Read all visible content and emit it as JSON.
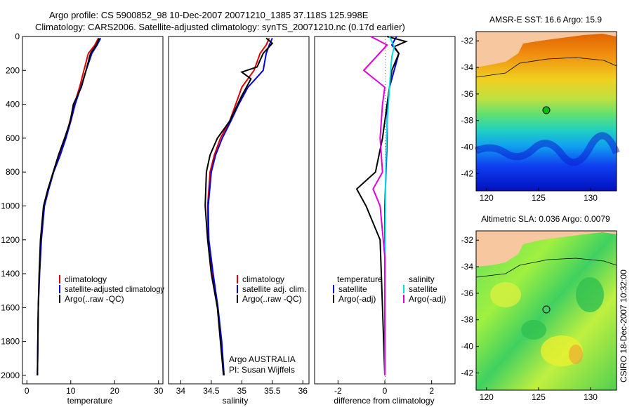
{
  "header": {
    "line1": "Argo profile: CS 5900852_98 10-Dec-2007 20071210_1385 37.118S 125.998E",
    "line2": "Climatology: CARS2006. Satellite-adjusted climatology: synTS_20071210.nc (0.17d earlier)"
  },
  "side_label": "CSIRO 18-Dec-2007 10:32:00",
  "chart_data": [
    {
      "id": "temperature",
      "type": "line",
      "xlabel": "temperature",
      "xlim": [
        -1,
        31
      ],
      "ylim": [
        0,
        2050
      ],
      "xticks": [
        "0",
        "10",
        "20",
        "30"
      ],
      "yticks": [
        "0",
        "200",
        "400",
        "600",
        "800",
        "1000",
        "1200",
        "1400",
        "1600",
        "1800",
        "2000"
      ],
      "legend": [
        "climatology",
        "satellite-adjusted climatology",
        "Argo(..raw -QC)"
      ],
      "series": [
        {
          "name": "climatology",
          "color": "#e00000",
          "x": [
            16.3,
            15.5,
            14.0,
            13.0,
            12.0,
            10.8,
            9.8,
            8.8,
            7.5,
            6.0,
            4.9,
            3.9,
            3.2,
            2.8,
            2.6,
            2.5,
            2.4
          ],
          "y": [
            10,
            50,
            100,
            200,
            300,
            400,
            500,
            600,
            700,
            800,
            900,
            1000,
            1200,
            1400,
            1600,
            1800,
            2000
          ]
        },
        {
          "name": "satellite-adjusted climatology",
          "color": "#0000e0",
          "x": [
            16.8,
            16.0,
            14.8,
            13.5,
            12.3,
            11.0,
            10.0,
            8.9,
            7.6,
            6.1,
            5.0,
            4.0,
            3.3,
            2.9,
            2.6,
            2.5,
            2.4
          ],
          "y": [
            10,
            50,
            100,
            200,
            300,
            400,
            500,
            600,
            700,
            800,
            900,
            1000,
            1200,
            1400,
            1600,
            1800,
            2000
          ]
        },
        {
          "name": "Argo(..raw -QC)",
          "color": "#000000",
          "x": [
            16.5,
            15.8,
            14.5,
            13.5,
            12.4,
            10.6,
            9.9,
            8.6,
            7.2,
            6.0,
            4.8,
            3.8,
            3.1,
            2.8,
            2.6,
            2.5,
            2.4
          ],
          "y": [
            10,
            50,
            100,
            200,
            300,
            400,
            500,
            600,
            700,
            800,
            900,
            1000,
            1200,
            1400,
            1600,
            1800,
            2000
          ]
        }
      ]
    },
    {
      "id": "salinity",
      "type": "line",
      "xlabel": "salinity",
      "xlim": [
        33.8,
        36.1
      ],
      "ylim": [
        0,
        2050
      ],
      "xticks": [
        "34",
        "34.5",
        "35",
        "35.5",
        "36"
      ],
      "legend": [
        "climatology",
        "satellite adj. clim.",
        "Argo(..raw -QC)"
      ],
      "annotation": [
        "Argo AUSTRALIA",
        "PI: Susan Wijffels"
      ],
      "series": [
        {
          "name": "climatology",
          "color": "#e00000",
          "x": [
            35.45,
            35.4,
            35.3,
            35.2,
            35.0,
            34.9,
            34.8,
            34.65,
            34.55,
            34.48,
            34.44,
            34.45,
            34.52,
            34.6,
            34.66,
            34.7
          ],
          "y": [
            10,
            50,
            100,
            200,
            300,
            400,
            500,
            600,
            700,
            800,
            1000,
            1200,
            1400,
            1600,
            1800,
            2000
          ]
        },
        {
          "name": "satellite adj. clim.",
          "color": "#0000e0",
          "x": [
            35.5,
            35.45,
            35.4,
            35.35,
            35.1,
            34.95,
            34.82,
            34.68,
            34.57,
            34.5,
            34.45,
            34.46,
            34.53,
            34.61,
            34.67,
            34.71
          ],
          "y": [
            10,
            50,
            100,
            200,
            300,
            400,
            500,
            600,
            700,
            800,
            1000,
            1200,
            1400,
            1600,
            1800,
            2000
          ]
        },
        {
          "name": "Argo(..raw -QC)",
          "color": "#000000",
          "x": [
            35.4,
            35.5,
            35.35,
            35.25,
            35.0,
            35.15,
            35.0,
            34.8,
            34.6,
            34.48,
            34.42,
            34.4,
            34.44,
            34.5,
            34.6,
            34.65,
            34.7
          ],
          "y": [
            10,
            40,
            100,
            180,
            210,
            250,
            350,
            500,
            600,
            700,
            800,
            1000,
            1200,
            1400,
            1600,
            1800,
            2000
          ]
        }
      ]
    },
    {
      "id": "difference",
      "type": "line",
      "xlabel": "difference from climatology",
      "xlim": [
        -3,
        3
      ],
      "ylim": [
        0,
        2050
      ],
      "xticks": [
        "-2",
        "0",
        "2"
      ],
      "legend": [
        "temperature",
        "satellite",
        "Argo(-adj)",
        "salinity",
        "satellite",
        "Argo(-adj)"
      ],
      "series": [
        {
          "name": "temperature satellite",
          "color": "#0000e0",
          "x": [
            0.5,
            0.3,
            0.6,
            0.5,
            0.4,
            0.2,
            0.1,
            0.1,
            0.05,
            0.0,
            0.0,
            0.0,
            0.0
          ],
          "y": [
            0,
            50,
            100,
            150,
            200,
            300,
            400,
            600,
            800,
            1000,
            1400,
            1800,
            2000
          ]
        },
        {
          "name": "temperature Argo(-adj)",
          "color": "#000000",
          "x": [
            0.1,
            0.9,
            0.4,
            0.6,
            0.3,
            0.1,
            -0.1,
            -0.4,
            -1.2,
            -0.8,
            -0.2,
            -0.1,
            0.0
          ],
          "y": [
            0,
            30,
            60,
            100,
            200,
            400,
            600,
            800,
            900,
            1000,
            1200,
            1600,
            2000
          ]
        },
        {
          "name": "salinity satellite",
          "color": "#00e0e0",
          "x": [
            0.2,
            0.4,
            0.3,
            0.25,
            0.2,
            0.1,
            0.05,
            0.02,
            0.0,
            0.0
          ],
          "y": [
            0,
            60,
            120,
            200,
            300,
            500,
            700,
            1000,
            1500,
            2000
          ]
        },
        {
          "name": "salinity Argo(-adj)",
          "color": "#e000e0",
          "x": [
            -0.6,
            0.1,
            -0.9,
            0.0,
            -0.1,
            -0.2,
            -0.1,
            -0.5,
            -0.2,
            0.0,
            0.0
          ],
          "y": [
            0,
            50,
            200,
            300,
            400,
            600,
            800,
            900,
            1000,
            1300,
            2000
          ]
        }
      ]
    },
    {
      "id": "sst-map",
      "type": "heatmap",
      "title": "AMSR-E SST: 16.6 Argo: 15.9",
      "xlim": [
        119,
        132.5
      ],
      "ylim": [
        -43.3,
        -31.3
      ],
      "xticks": [
        "120",
        "125",
        "130"
      ],
      "yticks": [
        "-32",
        "-34",
        "-36",
        "-38",
        "-40",
        "-42"
      ],
      "argo_position": {
        "lon": 126.0,
        "lat": -37.118
      },
      "land_color": "#f7c8a0"
    },
    {
      "id": "sla-map",
      "type": "heatmap",
      "title": "Altimetric SLA: 0.036 Argo: 0.0079",
      "xlim": [
        119,
        132.5
      ],
      "ylim": [
        -43.3,
        -31.3
      ],
      "xticks": [
        "120",
        "125",
        "130"
      ],
      "yticks": [
        "-32",
        "-34",
        "-36",
        "-38",
        "-40",
        "-42"
      ],
      "argo_position": {
        "lon": 126.0,
        "lat": -37.118
      },
      "land_color": "#f7c8a0"
    }
  ]
}
